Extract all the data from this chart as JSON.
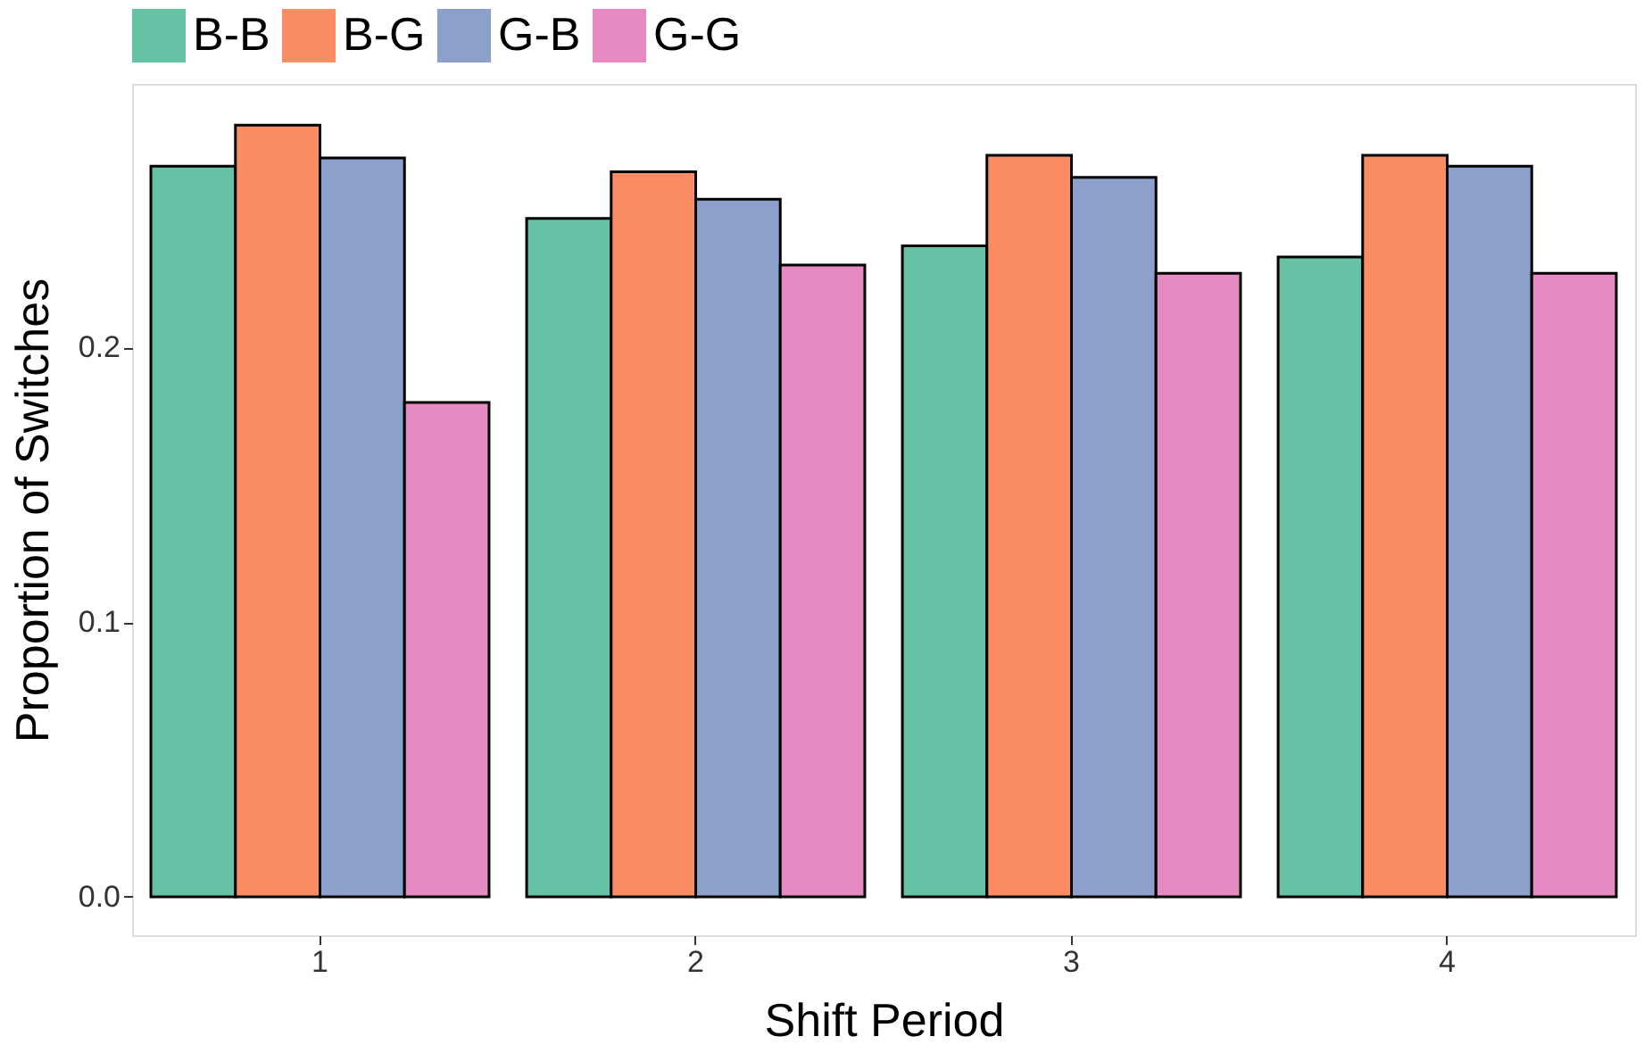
{
  "chart_data": {
    "type": "bar",
    "xlabel": "Shift Period",
    "ylabel": "Proportion of Switches",
    "categories": [
      "1",
      "2",
      "3",
      "4"
    ],
    "series": [
      {
        "name": "B-B",
        "color": "#66c2a5",
        "values": [
          0.266,
          0.247,
          0.237,
          0.233
        ]
      },
      {
        "name": "B-G",
        "color": "#fc8d62",
        "values": [
          0.281,
          0.264,
          0.27,
          0.27
        ]
      },
      {
        "name": "G-B",
        "color": "#8da0cb",
        "values": [
          0.269,
          0.254,
          0.262,
          0.266
        ]
      },
      {
        "name": "G-G",
        "color": "#e78ac3",
        "values": [
          0.18,
          0.23,
          0.227,
          0.227
        ]
      }
    ],
    "ylim": [
      -0.014,
      0.296
    ],
    "yticks": [
      {
        "value": 0,
        "label": "0.0"
      },
      0.1,
      0.2
    ],
    "grid": false,
    "legend": "top"
  }
}
